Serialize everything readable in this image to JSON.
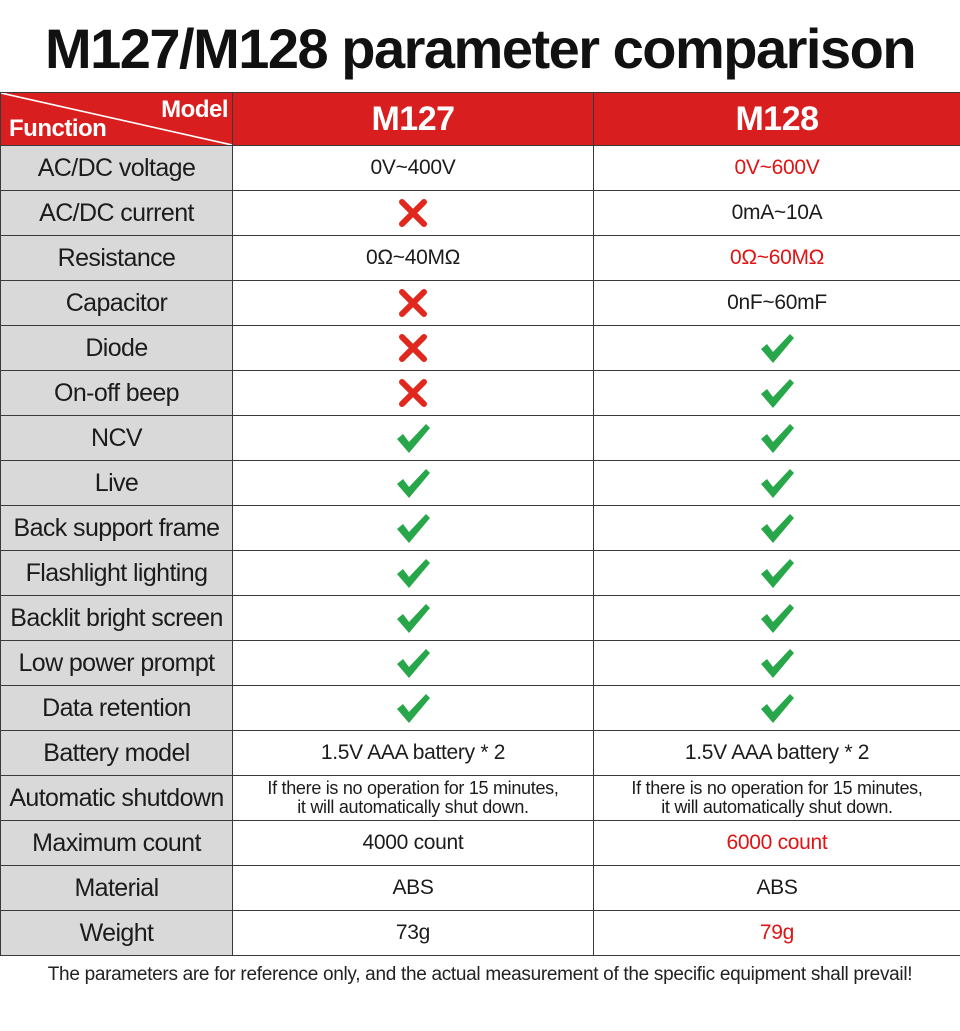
{
  "title": "M127/M128 parameter comparison",
  "header": {
    "model_label": "Model",
    "function_label": "Function",
    "columns": [
      "M127",
      "M128"
    ],
    "header_color": "#d81e1e"
  },
  "rows": [
    {
      "name": "AC/DC voltage",
      "cells": [
        {
          "type": "text",
          "text": "0V~400V"
        },
        {
          "type": "text",
          "text": "0V~600V",
          "highlight": true
        }
      ]
    },
    {
      "name": "AC/DC current",
      "cells": [
        {
          "type": "cross"
        },
        {
          "type": "text",
          "text": "0mA~10A"
        }
      ]
    },
    {
      "name": "Resistance",
      "cells": [
        {
          "type": "text",
          "text": "0Ω~40MΩ"
        },
        {
          "type": "text",
          "text": "0Ω~60MΩ",
          "highlight": true
        }
      ]
    },
    {
      "name": "Capacitor",
      "cells": [
        {
          "type": "cross"
        },
        {
          "type": "text",
          "text": "0nF~60mF"
        }
      ]
    },
    {
      "name": "Diode",
      "cells": [
        {
          "type": "cross"
        },
        {
          "type": "check"
        }
      ]
    },
    {
      "name": "On-off beep",
      "cells": [
        {
          "type": "cross"
        },
        {
          "type": "check"
        }
      ]
    },
    {
      "name": "NCV",
      "cells": [
        {
          "type": "check"
        },
        {
          "type": "check"
        }
      ]
    },
    {
      "name": "Live",
      "cells": [
        {
          "type": "check"
        },
        {
          "type": "check"
        }
      ]
    },
    {
      "name": "Back support frame",
      "cells": [
        {
          "type": "check"
        },
        {
          "type": "check"
        }
      ]
    },
    {
      "name": "Flashlight lighting",
      "cells": [
        {
          "type": "check"
        },
        {
          "type": "check"
        }
      ]
    },
    {
      "name": "Backlit bright screen",
      "cells": [
        {
          "type": "check"
        },
        {
          "type": "check"
        }
      ]
    },
    {
      "name": "Low power prompt",
      "cells": [
        {
          "type": "check"
        },
        {
          "type": "check"
        }
      ]
    },
    {
      "name": "Data retention",
      "cells": [
        {
          "type": "check"
        },
        {
          "type": "check"
        }
      ]
    },
    {
      "name": "Battery model",
      "cells": [
        {
          "type": "text",
          "text": "1.5V AAA battery * 2"
        },
        {
          "type": "text",
          "text": "1.5V AAA battery * 2"
        }
      ]
    },
    {
      "name": "Automatic shutdown",
      "cells": [
        {
          "type": "text",
          "small": true,
          "lines": [
            "If there is no operation for 15 minutes,",
            "it will automatically shut down."
          ]
        },
        {
          "type": "text",
          "small": true,
          "lines": [
            "If there is no operation for 15 minutes,",
            "it will automatically shut down."
          ]
        }
      ]
    },
    {
      "name": "Maximum count",
      "cells": [
        {
          "type": "text",
          "text": "4000 count"
        },
        {
          "type": "text",
          "text": "6000 count",
          "highlight": true
        }
      ]
    },
    {
      "name": "Material",
      "cells": [
        {
          "type": "text",
          "text": "ABS"
        },
        {
          "type": "text",
          "text": "ABS"
        }
      ]
    },
    {
      "name": "Weight",
      "cells": [
        {
          "type": "text",
          "text": "73g"
        },
        {
          "type": "text",
          "text": "79g",
          "highlight": true
        }
      ]
    }
  ],
  "colors": {
    "highlight": "#e01414",
    "check": "#27a74a",
    "cross": "#e0281e",
    "function_bg": "#d9d9d9"
  },
  "icons": {
    "check": "check-icon",
    "cross": "cross-icon"
  },
  "footer": "The parameters are for reference only, and the actual measurement of the specific equipment shall prevail!"
}
